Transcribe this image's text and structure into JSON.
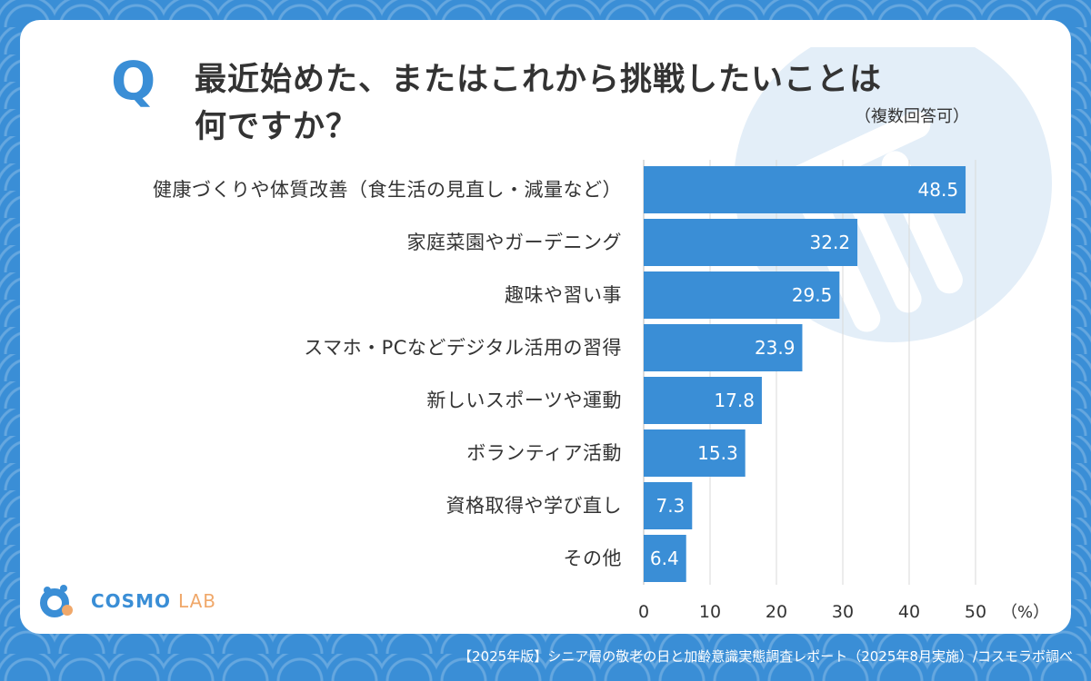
{
  "question": {
    "q_mark": "Q",
    "title_line1": "最近始めた、またはこれから挑戦したいことは",
    "title_line2": "何ですか？",
    "note": "（複数回答可）"
  },
  "logo": {
    "cosmo": "COSMO",
    "lab": "LAB"
  },
  "footer": "【2025年版】シニア層の敬老の日と加齢意識実態調査レポート（2025年8月実施）/コスモラボ調べ",
  "colors": {
    "bar": "#3a8ed6",
    "accent": "#3a8ed6",
    "grid": "#d9d9d9",
    "text": "#333333"
  },
  "chart_data": {
    "type": "bar",
    "orientation": "horizontal",
    "categories": [
      "健康づくりや体質改善（食生活の見直し・減量など）",
      "家庭菜園やガーデニング",
      "趣味や習い事",
      "スマホ・PCなどデジタル活用の習得",
      "新しいスポーツや運動",
      "ボランティア活動",
      "資格取得や学び直し",
      "その他"
    ],
    "values": [
      48.5,
      32.2,
      29.5,
      23.9,
      17.8,
      15.3,
      7.3,
      6.4
    ],
    "value_labels": [
      "48.5",
      "32.2",
      "29.5",
      "23.9",
      "17.8",
      "15.3",
      "7.3",
      "6.4"
    ],
    "x_ticks": [
      0,
      10,
      20,
      30,
      40,
      50
    ],
    "x_unit": "（%）",
    "xlim": [
      0,
      50
    ],
    "grid": true
  }
}
